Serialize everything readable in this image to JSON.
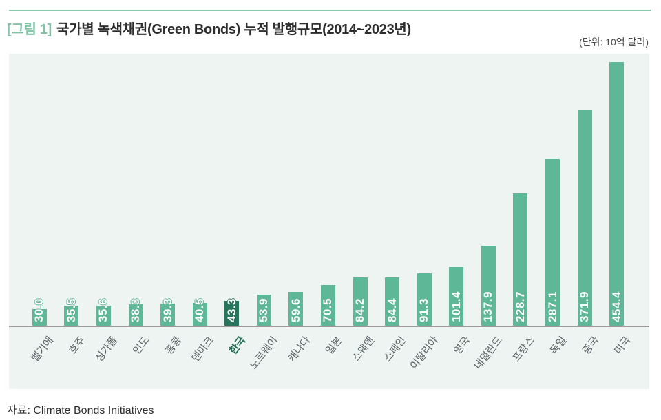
{
  "header": {
    "tag": "[그림 1]",
    "title": "국가별 녹색채권(Green Bonds) 누적 발행규모(2014~2023년)",
    "unit_label": "(단위: 10억 달러)"
  },
  "chart_data": {
    "type": "bar",
    "title": "국가별 녹색채권(Green Bonds) 누적 발행규모(2014~2023년)",
    "xlabel": "",
    "ylabel": "10억 달러",
    "ylim": [
      0,
      460
    ],
    "grid": false,
    "legend": null,
    "categories": [
      "벨기에",
      "호주",
      "싱가폴",
      "인도",
      "홍콩",
      "덴마크",
      "한국",
      "노르웨이",
      "캐나다",
      "일본",
      "스웨덴",
      "스페인",
      "이탈리아",
      "영국",
      "네덜란드",
      "프랑스",
      "독일",
      "중국",
      "미국"
    ],
    "values": [
      30.0,
      35.5,
      35.6,
      38.3,
      39.3,
      40.5,
      43.3,
      53.9,
      59.6,
      70.5,
      84.2,
      84.4,
      91.3,
      101.4,
      137.9,
      228.7,
      287.1,
      371.9,
      454.4
    ],
    "value_labels": [
      "30.0",
      "35.5",
      "35.6",
      "38.3",
      "39.3",
      "40.5",
      "43.3",
      "53.9",
      "59.6",
      "70.5",
      "84.2",
      "84.4",
      "91.3",
      "101.4",
      "137.9",
      "228.7",
      "287.1",
      "371.9",
      "454.4"
    ],
    "highlight_category": "한국",
    "highlight_index": 6,
    "colors": {
      "bar": "#5eb898",
      "highlight_bar": "#27745c",
      "plot_background": "#edf4f1",
      "axis_line": "#9b9b9b",
      "category_label": "#5c6367",
      "highlight_category_label": "#1e6b51",
      "value_text": "#ffffff",
      "title_tag": "#83c4a7"
    }
  },
  "footer": {
    "source": "자료: Climate Bonds Initiatives"
  }
}
